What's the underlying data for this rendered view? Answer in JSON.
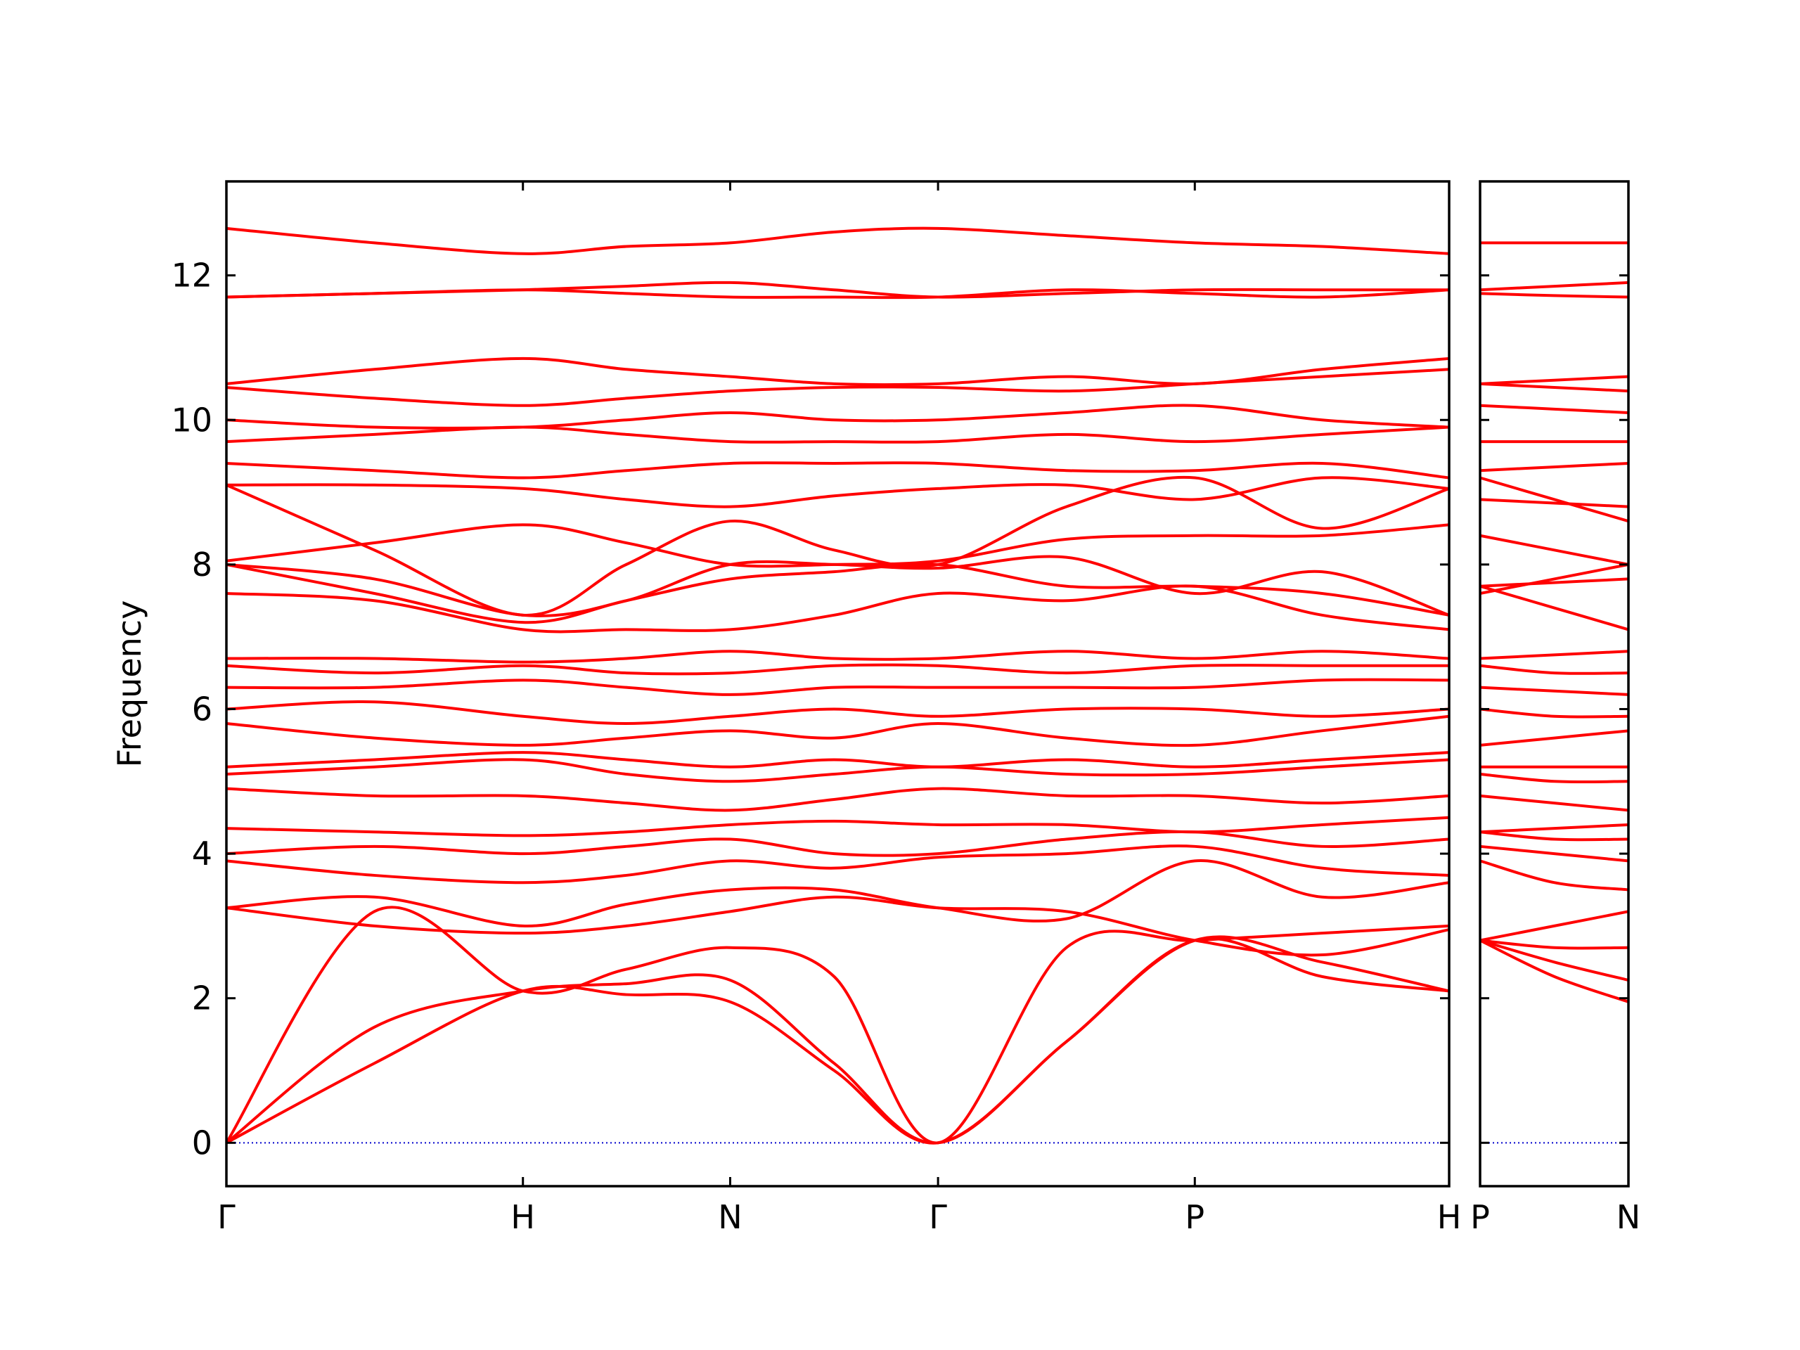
{
  "chart_data": [
    {
      "type": "line",
      "ylabel": "Frequency",
      "color": "#ff0000",
      "line_style": "smooth",
      "tick_direction": "in",
      "xlim": [
        0,
        1
      ],
      "ylim": [
        -0.6,
        13.3
      ],
      "yticks": [
        0,
        2,
        4,
        6,
        8,
        10,
        12
      ],
      "ytick_labels": true,
      "xticks": [
        {
          "value": 0,
          "label": "Γ"
        },
        {
          "value": 0.2425,
          "label": "H"
        },
        {
          "value": 0.412,
          "label": "N"
        },
        {
          "value": 0.582,
          "label": "Γ"
        },
        {
          "value": 0.792,
          "label": "P"
        },
        {
          "value": 1,
          "label": "H"
        }
      ],
      "hlines": [
        {
          "value": 0,
          "color": "#0000cc",
          "style": "dotted"
        }
      ],
      "x": [
        0,
        0.121,
        0.2425,
        0.327,
        0.412,
        0.497,
        0.582,
        0.687,
        0.792,
        0.896,
        1
      ],
      "series": [
        {
          "values": [
            0,
            1.1,
            2.1,
            2.05,
            1.95,
            1.0,
            0,
            1.4,
            2.8,
            2.3,
            2.1
          ]
        },
        {
          "values": [
            0,
            1.6,
            2.1,
            2.2,
            2.25,
            1.1,
            0,
            1.4,
            2.8,
            2.5,
            2.1
          ]
        },
        {
          "values": [
            0,
            3.2,
            2.1,
            2.4,
            2.7,
            2.3,
            0,
            2.7,
            2.8,
            2.9,
            3.0
          ]
        },
        {
          "values": [
            3.25,
            3.0,
            2.9,
            3.0,
            3.2,
            3.4,
            3.25,
            3.2,
            2.8,
            2.6,
            2.95
          ]
        },
        {
          "values": [
            3.25,
            3.4,
            3.0,
            3.3,
            3.5,
            3.5,
            3.25,
            3.1,
            3.9,
            3.4,
            3.6
          ]
        },
        {
          "values": [
            3.9,
            3.7,
            3.6,
            3.7,
            3.9,
            3.8,
            3.95,
            4.0,
            4.1,
            3.8,
            3.7
          ]
        },
        {
          "values": [
            4.0,
            4.1,
            4.0,
            4.1,
            4.2,
            4.0,
            4.0,
            4.2,
            4.3,
            4.1,
            4.2
          ]
        },
        {
          "values": [
            4.35,
            4.3,
            4.25,
            4.3,
            4.4,
            4.45,
            4.4,
            4.4,
            4.3,
            4.4,
            4.5
          ]
        },
        {
          "values": [
            4.9,
            4.8,
            4.8,
            4.7,
            4.6,
            4.75,
            4.9,
            4.8,
            4.8,
            4.7,
            4.8
          ]
        },
        {
          "values": [
            5.1,
            5.2,
            5.3,
            5.1,
            5.0,
            5.1,
            5.2,
            5.1,
            5.1,
            5.2,
            5.3
          ]
        },
        {
          "values": [
            5.2,
            5.3,
            5.4,
            5.3,
            5.2,
            5.3,
            5.2,
            5.3,
            5.2,
            5.3,
            5.4
          ]
        },
        {
          "values": [
            5.8,
            5.6,
            5.5,
            5.6,
            5.7,
            5.6,
            5.8,
            5.6,
            5.5,
            5.7,
            5.9
          ]
        },
        {
          "values": [
            6.0,
            6.1,
            5.9,
            5.8,
            5.9,
            6.0,
            5.9,
            6.0,
            6.0,
            5.9,
            6.0
          ]
        },
        {
          "values": [
            6.3,
            6.3,
            6.4,
            6.3,
            6.2,
            6.3,
            6.3,
            6.3,
            6.3,
            6.4,
            6.4
          ]
        },
        {
          "values": [
            6.6,
            6.5,
            6.6,
            6.5,
            6.5,
            6.6,
            6.6,
            6.5,
            6.6,
            6.6,
            6.6
          ]
        },
        {
          "values": [
            6.7,
            6.7,
            6.65,
            6.7,
            6.8,
            6.7,
            6.7,
            6.8,
            6.7,
            6.8,
            6.7
          ]
        },
        {
          "values": [
            7.6,
            7.5,
            7.1,
            7.1,
            7.1,
            7.3,
            7.6,
            7.5,
            7.7,
            7.3,
            7.1
          ]
        },
        {
          "values": [
            8.0,
            7.6,
            7.2,
            7.5,
            7.8,
            7.9,
            8.0,
            7.7,
            7.7,
            7.6,
            7.3
          ]
        },
        {
          "values": [
            8.0,
            7.8,
            7.3,
            7.5,
            8.0,
            8.0,
            7.95,
            8.1,
            7.6,
            7.9,
            7.3
          ]
        },
        {
          "values": [
            8.05,
            8.3,
            8.55,
            8.3,
            8.0,
            8.0,
            8.05,
            8.35,
            8.4,
            8.4,
            8.55
          ]
        },
        {
          "values": [
            9.1,
            8.2,
            7.3,
            8.0,
            8.6,
            8.2,
            8.0,
            8.8,
            9.2,
            8.5,
            9.05
          ]
        },
        {
          "values": [
            9.1,
            9.1,
            9.05,
            8.9,
            8.8,
            8.95,
            9.05,
            9.1,
            8.9,
            9.2,
            9.05
          ]
        },
        {
          "values": [
            9.4,
            9.3,
            9.2,
            9.3,
            9.4,
            9.4,
            9.4,
            9.3,
            9.3,
            9.4,
            9.2
          ]
        },
        {
          "values": [
            9.7,
            9.8,
            9.9,
            9.8,
            9.7,
            9.7,
            9.7,
            9.8,
            9.7,
            9.8,
            9.9
          ]
        },
        {
          "values": [
            10.0,
            9.9,
            9.9,
            10.0,
            10.1,
            10.0,
            10.0,
            10.1,
            10.2,
            10.0,
            9.9
          ]
        },
        {
          "values": [
            10.45,
            10.3,
            10.2,
            10.3,
            10.4,
            10.45,
            10.45,
            10.4,
            10.5,
            10.6,
            10.7
          ]
        },
        {
          "values": [
            10.5,
            10.7,
            10.85,
            10.7,
            10.6,
            10.5,
            10.5,
            10.6,
            10.5,
            10.7,
            10.85
          ]
        },
        {
          "values": [
            11.7,
            11.75,
            11.8,
            11.85,
            11.9,
            11.8,
            11.7,
            11.75,
            11.8,
            11.8,
            11.8
          ]
        },
        {
          "values": [
            11.7,
            11.75,
            11.8,
            11.75,
            11.7,
            11.7,
            11.7,
            11.8,
            11.75,
            11.7,
            11.8
          ]
        },
        {
          "values": [
            12.65,
            12.45,
            12.3,
            12.4,
            12.45,
            12.6,
            12.65,
            12.55,
            12.45,
            12.4,
            12.3
          ]
        }
      ]
    },
    {
      "type": "line",
      "color": "#ff0000",
      "line_style": "smooth",
      "tick_direction": "in",
      "xlim": [
        0,
        0.121
      ],
      "ylim": [
        -0.6,
        13.3
      ],
      "yticks": [
        0,
        2,
        4,
        6,
        8,
        10,
        12
      ],
      "ytick_labels": false,
      "xticks": [
        {
          "value": 0,
          "label": "P"
        },
        {
          "value": 0.121,
          "label": "N"
        }
      ],
      "hlines": [
        {
          "value": 0,
          "color": "#0000cc",
          "style": "dotted"
        }
      ],
      "x": [
        0,
        0.0605,
        0.121
      ],
      "series": [
        {
          "values": [
            2.8,
            2.3,
            1.95
          ]
        },
        {
          "values": [
            2.8,
            2.5,
            2.25
          ]
        },
        {
          "values": [
            2.8,
            2.7,
            2.7
          ]
        },
        {
          "values": [
            2.8,
            3.0,
            3.2
          ]
        },
        {
          "values": [
            3.9,
            3.6,
            3.5
          ]
        },
        {
          "values": [
            4.1,
            4.0,
            3.9
          ]
        },
        {
          "values": [
            4.3,
            4.2,
            4.2
          ]
        },
        {
          "values": [
            4.3,
            4.35,
            4.4
          ]
        },
        {
          "values": [
            4.8,
            4.7,
            4.6
          ]
        },
        {
          "values": [
            5.1,
            5.0,
            5.0
          ]
        },
        {
          "values": [
            5.2,
            5.2,
            5.2
          ]
        },
        {
          "values": [
            5.5,
            5.6,
            5.7
          ]
        },
        {
          "values": [
            6.0,
            5.9,
            5.9
          ]
        },
        {
          "values": [
            6.3,
            6.25,
            6.2
          ]
        },
        {
          "values": [
            6.6,
            6.5,
            6.5
          ]
        },
        {
          "values": [
            6.7,
            6.75,
            6.8
          ]
        },
        {
          "values": [
            7.7,
            7.4,
            7.1
          ]
        },
        {
          "values": [
            7.7,
            7.75,
            7.8
          ]
        },
        {
          "values": [
            7.6,
            7.8,
            8.0
          ]
        },
        {
          "values": [
            8.4,
            8.2,
            8.0
          ]
        },
        {
          "values": [
            9.2,
            8.9,
            8.6
          ]
        },
        {
          "values": [
            8.9,
            8.85,
            8.8
          ]
        },
        {
          "values": [
            9.3,
            9.35,
            9.4
          ]
        },
        {
          "values": [
            9.7,
            9.7,
            9.7
          ]
        },
        {
          "values": [
            10.2,
            10.15,
            10.1
          ]
        },
        {
          "values": [
            10.5,
            10.45,
            10.4
          ]
        },
        {
          "values": [
            10.5,
            10.55,
            10.6
          ]
        },
        {
          "values": [
            11.8,
            11.85,
            11.9
          ]
        },
        {
          "values": [
            11.75,
            11.72,
            11.7
          ]
        },
        {
          "values": [
            12.45,
            12.45,
            12.45
          ]
        }
      ]
    }
  ]
}
